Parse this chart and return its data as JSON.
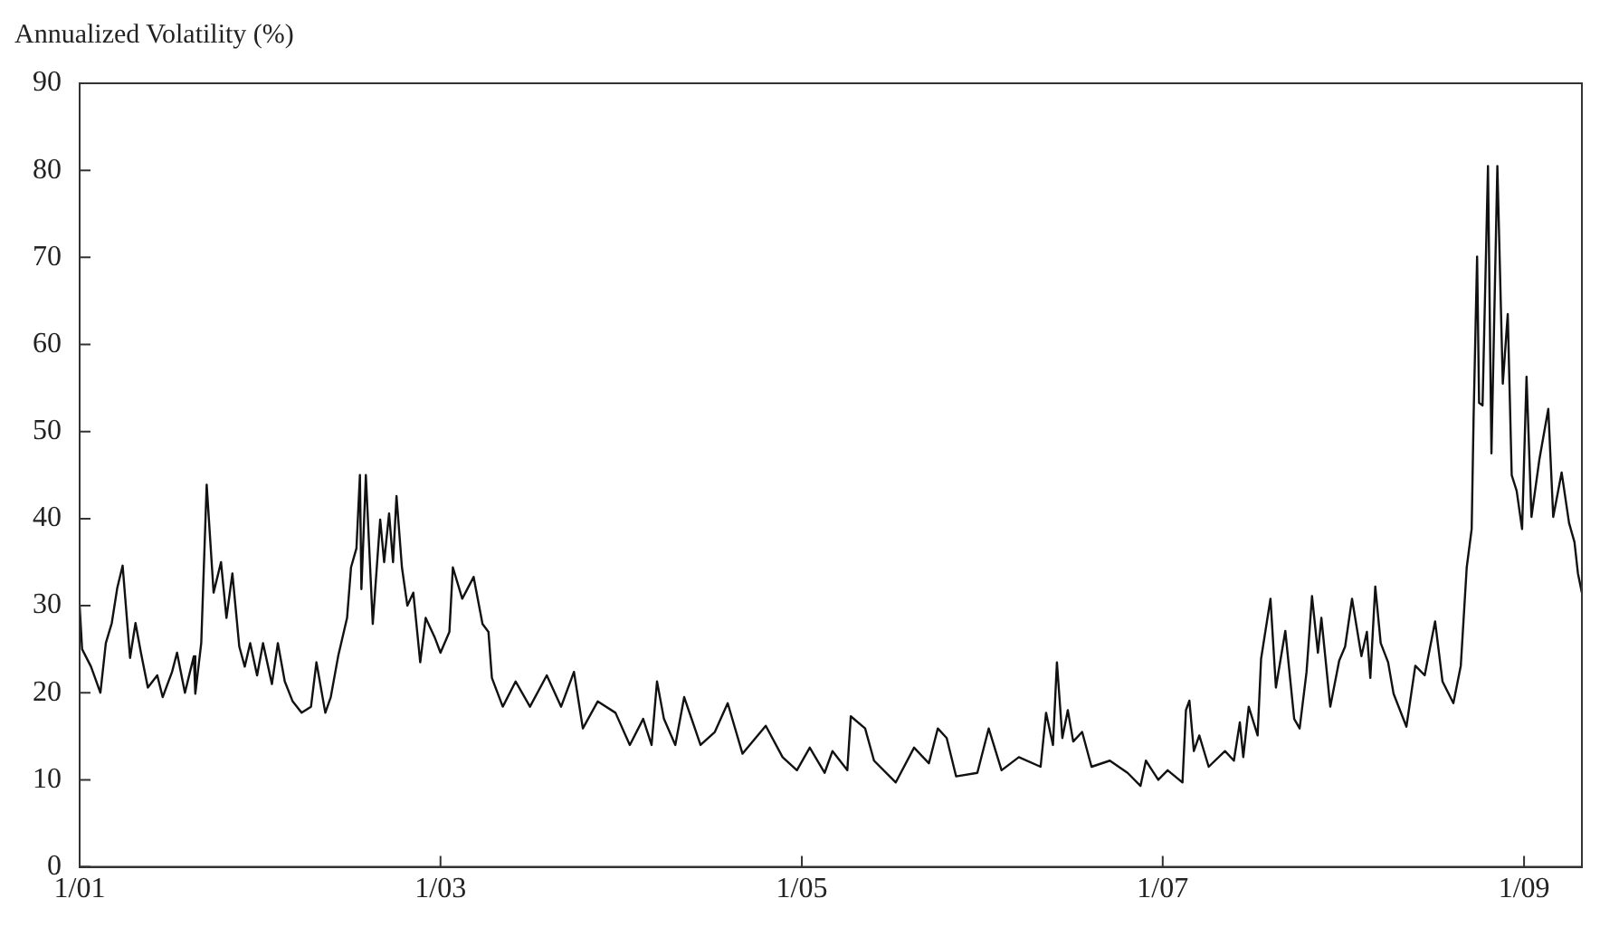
{
  "chart_data": {
    "type": "line",
    "ylabel": "Annualized Volatility (%)",
    "xlim": [
      "2001-01-01",
      "2009-04-28"
    ],
    "xticks": [
      {
        "value": "2001-01-01",
        "label": "1/01"
      },
      {
        "value": "2003-01-01",
        "label": "1/03"
      },
      {
        "value": "2005-01-01",
        "label": "1/05"
      },
      {
        "value": "2007-01-01",
        "label": "1/07"
      },
      {
        "value": "2009-01-01",
        "label": "1/09"
      }
    ],
    "ylim": [
      0,
      90
    ],
    "yticks": [
      0,
      10,
      20,
      30,
      40,
      50,
      60,
      70,
      80,
      90
    ],
    "grid": false,
    "legend": false,
    "marker": "none",
    "line_style": "solid",
    "series": [
      {
        "color": "#111111",
        "x": [
          "2001-01-01",
          "2001-01-06",
          "2001-01-24",
          "2001-02-12",
          "2001-02-23",
          "2001-03-07",
          "2001-03-18",
          "2001-03-29",
          "2001-04-13",
          "2001-04-24",
          "2001-05-05",
          "2001-05-19",
          "2001-06-07",
          "2001-06-18",
          "2001-07-07",
          "2001-07-17",
          "2001-08-02",
          "2001-08-20",
          "2001-08-23",
          "2001-09-04",
          "2001-09-15",
          "2001-09-29",
          "2001-10-14",
          "2001-10-25",
          "2001-11-06",
          "2001-11-20",
          "2001-12-01",
          "2001-12-12",
          "2001-12-26",
          "2002-01-07",
          "2002-01-25",
          "2002-02-06",
          "2002-02-20",
          "2002-03-08",
          "2002-03-26",
          "2002-04-14",
          "2002-04-25",
          "2002-05-13",
          "2002-05-24",
          "2002-06-08",
          "2002-06-26",
          "2002-07-04",
          "2002-07-15",
          "2002-07-22",
          "2002-07-25",
          "2002-08-03",
          "2002-08-17",
          "2002-09-01",
          "2002-09-09",
          "2002-09-19",
          "2002-09-27",
          "2002-10-04",
          "2002-10-15",
          "2002-10-26",
          "2002-11-07",
          "2002-11-21",
          "2002-12-02",
          "2002-12-20",
          "2003-01-01",
          "2003-01-19",
          "2003-01-26",
          "2003-02-14",
          "2003-03-09",
          "2003-03-27",
          "2003-04-08",
          "2003-04-15",
          "2003-05-07",
          "2003-06-02",
          "2003-07-01",
          "2003-08-04",
          "2003-09-02",
          "2003-09-28",
          "2003-10-16",
          "2003-11-15",
          "2003-12-21",
          "2004-01-19",
          "2004-02-15",
          "2004-03-03",
          "2004-03-14",
          "2004-03-28",
          "2004-04-20",
          "2004-05-08",
          "2004-06-10",
          "2004-07-09",
          "2004-08-04",
          "2004-09-03",
          "2004-10-20",
          "2004-11-23",
          "2004-12-22",
          "2005-01-17",
          "2005-02-16",
          "2005-03-04",
          "2005-04-03",
          "2005-04-10",
          "2005-05-09",
          "2005-05-27",
          "2005-07-10",
          "2005-08-16",
          "2005-09-15",
          "2005-10-03",
          "2005-10-21",
          "2005-11-09",
          "2005-12-22",
          "2006-01-14",
          "2006-02-09",
          "2006-03-16",
          "2006-04-29",
          "2006-05-10",
          "2006-05-24",
          "2006-06-01",
          "2006-06-12",
          "2006-06-23",
          "2006-07-04",
          "2006-07-22",
          "2006-08-10",
          "2006-09-16",
          "2006-10-22",
          "2006-11-17",
          "2006-11-28",
          "2006-12-23",
          "2007-01-11",
          "2007-02-10",
          "2007-02-17",
          "2007-02-24",
          "2007-03-05",
          "2007-03-16",
          "2007-04-04",
          "2007-05-07",
          "2007-05-25",
          "2007-06-06",
          "2007-06-13",
          "2007-06-24",
          "2007-07-12",
          "2007-07-19",
          "2007-08-07",
          "2007-08-18",
          "2007-09-06",
          "2007-09-24",
          "2007-10-05",
          "2007-10-19",
          "2007-10-30",
          "2007-11-11",
          "2007-11-18",
          "2007-12-06",
          "2007-12-24",
          "2008-01-05",
          "2008-01-19",
          "2008-02-07",
          "2008-02-18",
          "2008-02-25",
          "2008-03-06",
          "2008-03-17",
          "2008-04-01",
          "2008-04-12",
          "2008-05-08",
          "2008-05-26",
          "2008-06-14",
          "2008-07-05",
          "2008-07-20",
          "2008-08-11",
          "2008-08-26",
          "2008-09-07",
          "2008-09-17",
          "2008-09-21",
          "2008-09-28",
          "2008-10-02",
          "2008-10-09",
          "2008-10-20",
          "2008-10-27",
          "2008-11-08",
          "2008-11-19",
          "2008-11-29",
          "2008-12-07",
          "2008-12-17",
          "2008-12-28",
          "2009-01-06",
          "2009-01-16",
          "2009-02-01",
          "2009-02-19",
          "2009-03-01",
          "2009-03-18",
          "2009-04-02",
          "2009-04-13",
          "2009-04-20",
          "2009-04-28"
        ],
        "values": [
          30,
          25,
          23,
          20,
          25.7,
          28,
          32,
          34.6,
          24,
          28,
          24.6,
          20.6,
          22,
          19.5,
          22.4,
          24.6,
          20,
          24.2,
          19.9,
          25.7,
          43.9,
          31.5,
          35,
          28.6,
          33.7,
          25.3,
          23,
          25.7,
          22,
          25.7,
          21,
          25.7,
          21.3,
          19,
          17.7,
          18.4,
          23.5,
          17.7,
          19.5,
          24.2,
          28.6,
          34.4,
          36.6,
          45,
          31.9,
          45,
          27.9,
          39.9,
          35,
          40.6,
          35,
          42.6,
          34.4,
          30,
          31.5,
          23.5,
          28.6,
          26.4,
          24.6,
          27,
          34.4,
          30.8,
          33.3,
          27.9,
          27,
          21.7,
          18.4,
          21.3,
          18.4,
          22,
          18.4,
          22.4,
          15.9,
          19,
          17.7,
          14,
          17,
          14,
          21.3,
          17,
          14,
          19.5,
          14,
          15.5,
          18.8,
          13,
          16.2,
          12.6,
          11.1,
          13.7,
          10.8,
          13.3,
          11.1,
          17.3,
          15.9,
          12.2,
          9.7,
          13.7,
          11.9,
          15.9,
          14.8,
          10.4,
          10.8,
          15.9,
          11.1,
          12.6,
          11.5,
          17.7,
          14,
          23.5,
          14.8,
          18,
          14.4,
          15.5,
          11.5,
          12.2,
          10.8,
          9.3,
          12.2,
          10,
          11.1,
          9.7,
          18,
          19.1,
          13.3,
          15.1,
          11.5,
          13.3,
          12.2,
          16.6,
          12.6,
          18.4,
          15.1,
          23.9,
          30.8,
          20.6,
          27.1,
          17,
          15.9,
          22.4,
          31.1,
          24.6,
          28.6,
          18.4,
          23.7,
          25.3,
          30.8,
          24.2,
          27,
          21.7,
          32.2,
          25.7,
          23.5,
          19.9,
          16.1,
          23.1,
          22,
          28.2,
          21.3,
          18.8,
          23.1,
          34.4,
          38.8,
          51.9,
          70.1,
          53.3,
          53,
          80.5,
          47.5,
          80.5,
          55.5,
          63.5,
          45,
          43.2,
          38.8,
          56.3,
          40.2,
          46.8,
          52.6,
          40.2,
          45.3,
          39.5,
          37.3,
          33.7,
          31.5
        ]
      }
    ]
  }
}
